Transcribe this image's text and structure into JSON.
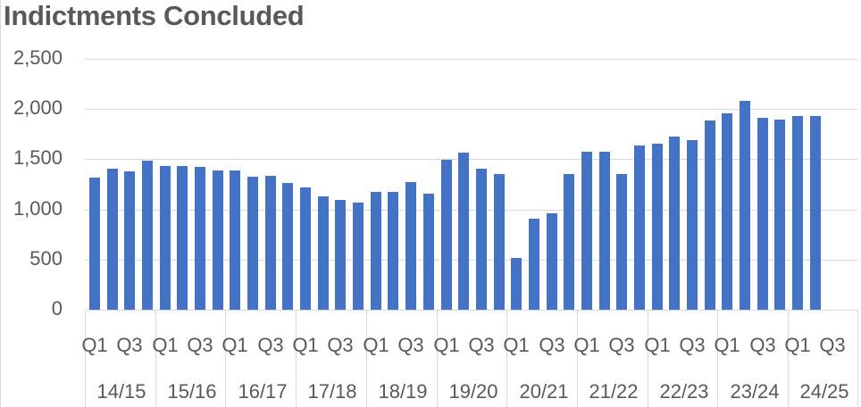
{
  "chart_data": {
    "type": "bar",
    "title": "Indictments Concluded",
    "xlabel": "",
    "ylabel": "",
    "ylim": [
      0,
      2500
    ],
    "yticks": [
      "0",
      "500",
      "1,000",
      "1,500",
      "2,000",
      "2,500"
    ],
    "grid": true,
    "legend": null,
    "bar_color": "#4472c4",
    "groups": [
      "14/15",
      "15/16",
      "16/17",
      "17/18",
      "18/19",
      "19/20",
      "20/21",
      "21/22",
      "22/23",
      "23/24",
      "24/25"
    ],
    "quarter_tick_labels": [
      "Q1",
      "Q3"
    ],
    "categories": [
      "14/15 Q1",
      "14/15 Q2",
      "14/15 Q3",
      "14/15 Q4",
      "15/16 Q1",
      "15/16 Q2",
      "15/16 Q3",
      "15/16 Q4",
      "16/17 Q1",
      "16/17 Q2",
      "16/17 Q3",
      "16/17 Q4",
      "17/18 Q1",
      "17/18 Q2",
      "17/18 Q3",
      "17/18 Q4",
      "18/19 Q1",
      "18/19 Q2",
      "18/19 Q3",
      "18/19 Q4",
      "19/20 Q1",
      "19/20 Q2",
      "19/20 Q3",
      "19/20 Q4",
      "20/21 Q1",
      "20/21 Q2",
      "20/21 Q3",
      "20/21 Q4",
      "21/22 Q1",
      "21/22 Q2",
      "21/22 Q3",
      "21/22 Q4",
      "22/23 Q1",
      "22/23 Q2",
      "22/23 Q3",
      "22/23 Q4",
      "23/24 Q1",
      "23/24 Q2",
      "23/24 Q3",
      "23/24 Q4",
      "24/25 Q1",
      "24/25 Q2"
    ],
    "values": [
      1317,
      1406,
      1379,
      1486,
      1432,
      1432,
      1423,
      1388,
      1388,
      1326,
      1334,
      1263,
      1219,
      1130,
      1094,
      1068,
      1174,
      1174,
      1272,
      1157,
      1495,
      1566,
      1406,
      1352,
      516,
      907,
      961,
      1352,
      1575,
      1575,
      1352,
      1637,
      1655,
      1726,
      1690,
      1886,
      1957,
      2082,
      1913,
      1895,
      1931,
      1931
    ]
  }
}
